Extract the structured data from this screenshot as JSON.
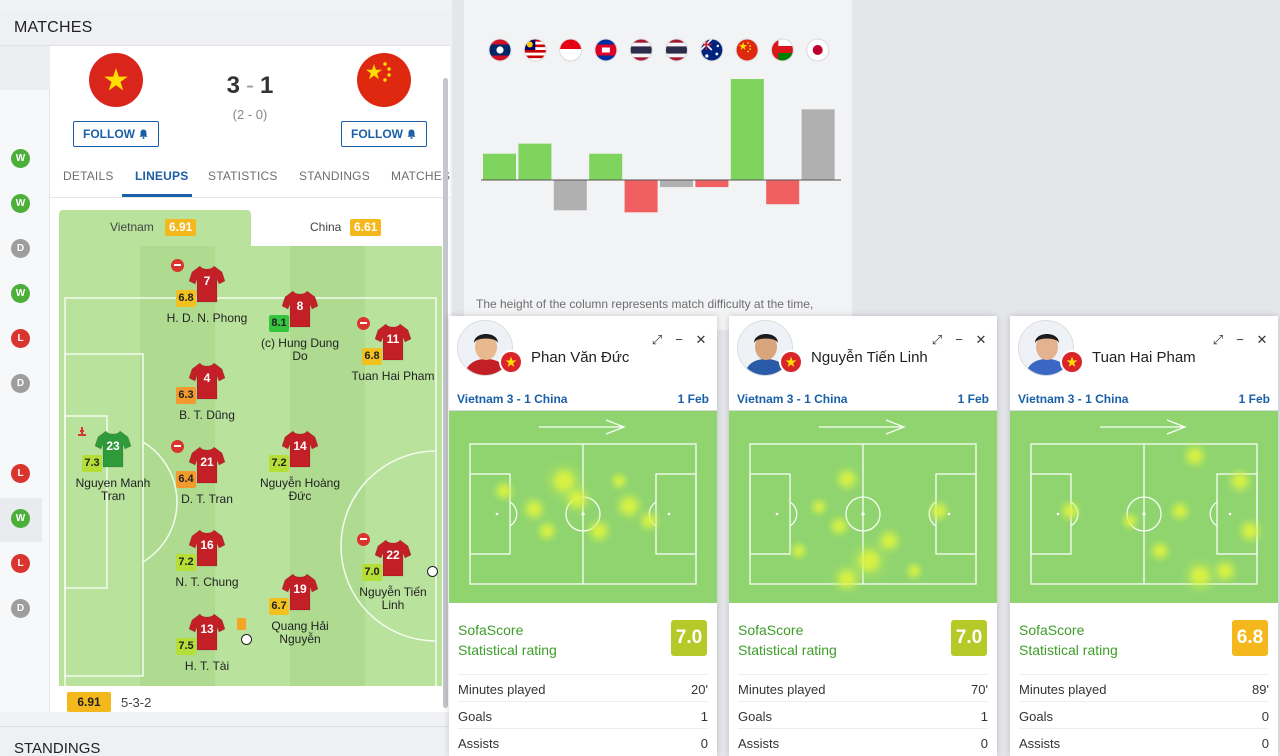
{
  "matches_header": {
    "title": "MATCHES"
  },
  "standings_header": {
    "title": "STANDINGS"
  },
  "form": [
    "W",
    "W",
    "D",
    "W",
    "L",
    "D",
    "",
    "L",
    "W",
    "L",
    "D"
  ],
  "match": {
    "home_score": "3",
    "score_sep": "-",
    "away_score": "1",
    "half_time": "(2 - 0)",
    "follow_label": "FOLLOW"
  },
  "tabs": [
    {
      "label": "DETAILS"
    },
    {
      "label": "LINEUPS"
    },
    {
      "label": "STATISTICS"
    },
    {
      "label": "STANDINGS"
    },
    {
      "label": "MATCHES"
    }
  ],
  "lineups": {
    "home": {
      "name": "Vietnam",
      "rating": "6.91"
    },
    "away": {
      "name": "China",
      "rating": "6.61"
    },
    "formation_rating": "6.91",
    "formation": "5-3-2",
    "players": [
      {
        "number": "7",
        "rating": "6.8",
        "name": "H. D. N. Phong",
        "sub": true
      },
      {
        "number": "8",
        "rating": "8.1",
        "name": "(c) Hung Dung Do"
      },
      {
        "number": "11",
        "rating": "6.8",
        "name": "Tuan Hai Pham",
        "sub": true
      },
      {
        "number": "4",
        "rating": "6.3",
        "name": "B. T. Dũng"
      },
      {
        "number": "23",
        "rating": "7.3",
        "name": "Nguyen Manh Tran",
        "gk": true
      },
      {
        "number": "21",
        "rating": "6.4",
        "name": "D. T. Tran",
        "sub": true
      },
      {
        "number": "14",
        "rating": "7.2",
        "name": "Nguyễn Hoàng Đức"
      },
      {
        "number": "16",
        "rating": "7.2",
        "name": "N. T. Chung"
      },
      {
        "number": "22",
        "rating": "7.0",
        "name": "Nguyễn Tiến Linh",
        "sub": true,
        "goal": true
      },
      {
        "number": "19",
        "rating": "6.7",
        "name": "Quang Hải Nguyễn"
      },
      {
        "number": "13",
        "rating": "7.5",
        "name": "H. T. Tài",
        "goal": true,
        "card": true
      }
    ]
  },
  "chart": {
    "caption": "The height of the column represents match difficulty at the time,",
    "flags": [
      "laos-flag",
      "malaysia-flag",
      "indonesia-flag",
      "cambodia-flag",
      "thailand-flag",
      "thailand-flag",
      "australia-flag",
      "china-flag",
      "oman-flag",
      "japan-flag"
    ]
  },
  "chart_data": {
    "type": "bar",
    "categories": [
      "Laos",
      "Malaysia",
      "Indonesia",
      "Cambodia",
      "Thailand",
      "Thailand",
      "Australia",
      "China",
      "Oman",
      "Japan"
    ],
    "series": [
      {
        "values": [
          26,
          36,
          -30,
          26,
          -32,
          -7,
          -7,
          100,
          -24,
          70
        ]
      }
    ],
    "colors": [
      "#7ed45c",
      "#7ed45c",
      "#b0b0b0",
      "#7ed45c",
      "#f06060",
      "#b0b0b0",
      "#f06060",
      "#7ed45c",
      "#f06060",
      "#b0b0b0"
    ],
    "ylim": [
      -35,
      105
    ],
    "title": "",
    "xlabel": "",
    "ylabel": ""
  },
  "popups": [
    {
      "player": "Phan Văn Đức",
      "match": "Vietnam 3 - 1 China",
      "date": "1 Feb",
      "rating_label_1": "SofaScore",
      "rating_label_2": "Statistical rating",
      "rating": "7.0",
      "rating_color": "#b5c929",
      "stats": [
        {
          "label": "Minutes played",
          "value": "20'"
        },
        {
          "label": "Goals",
          "value": "1"
        },
        {
          "label": "Assists",
          "value": "0"
        }
      ]
    },
    {
      "player": "Nguyễn Tiến Linh",
      "match": "Vietnam 3 - 1 China",
      "date": "1 Feb",
      "rating_label_1": "SofaScore",
      "rating_label_2": "Statistical rating",
      "rating": "7.0",
      "rating_color": "#b5c929",
      "stats": [
        {
          "label": "Minutes played",
          "value": "70'"
        },
        {
          "label": "Goals",
          "value": "1"
        },
        {
          "label": "Assists",
          "value": "0"
        }
      ]
    },
    {
      "player": "Tuan Hai Pham",
      "match": "Vietnam 3 - 1 China",
      "date": "1 Feb",
      "rating_label_1": "SofaScore",
      "rating_label_2": "Statistical rating",
      "rating": "6.8",
      "rating_color": "#f5b81c",
      "stats": [
        {
          "label": "Minutes played",
          "value": "89'"
        },
        {
          "label": "Goals",
          "value": "0"
        },
        {
          "label": "Assists",
          "value": "0"
        }
      ]
    }
  ]
}
